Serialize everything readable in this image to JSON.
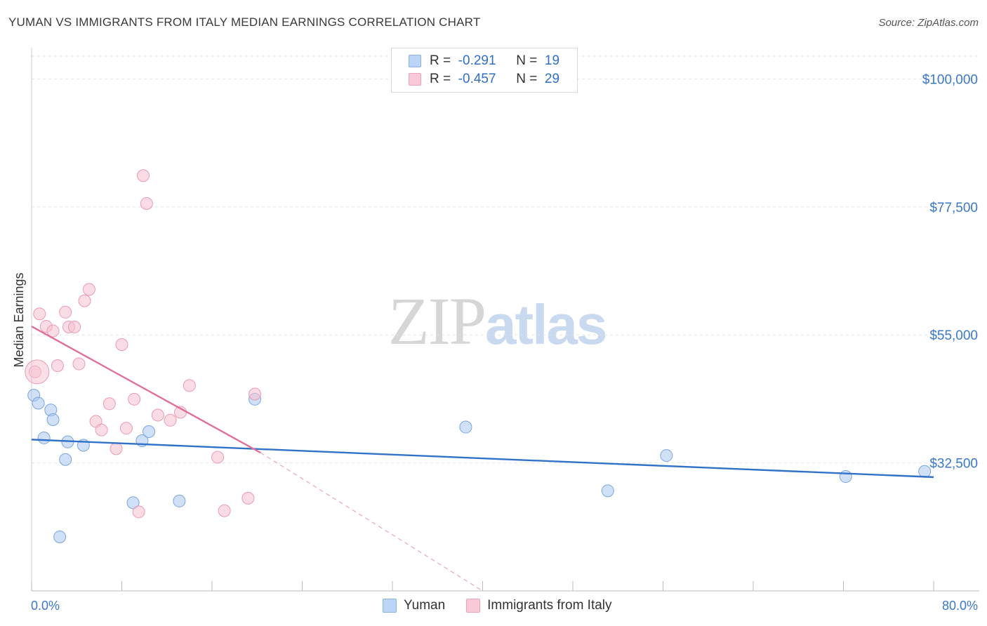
{
  "title": "YUMAN VS IMMIGRANTS FROM ITALY MEDIAN EARNINGS CORRELATION CHART",
  "source": "Source: ZipAtlas.com",
  "watermark": {
    "zip": "ZIP",
    "atlas": "atlas"
  },
  "legend": {
    "rows": [
      {
        "r_label": "R =",
        "r_value": "-0.291",
        "n_label": "N =",
        "n_value": "19"
      },
      {
        "r_label": "R =",
        "r_value": "-0.457",
        "n_label": "N =",
        "n_value": "29"
      }
    ]
  },
  "chart_data": {
    "type": "scatter",
    "title": "YUMAN VS IMMIGRANTS FROM ITALY MEDIAN EARNINGS CORRELATION CHART",
    "ylabel": "Median Earnings",
    "xlim": [
      0,
      80
    ],
    "ylim": [
      10000,
      104000
    ],
    "x_tick_labels": [
      "0.0%",
      "80.0%"
    ],
    "y_ticks": [
      {
        "value": 100000,
        "label": "$100,000"
      },
      {
        "value": 77500,
        "label": "$77,500"
      },
      {
        "value": 55000,
        "label": "$55,000"
      },
      {
        "value": 32500,
        "label": "$32,500"
      }
    ],
    "series": [
      {
        "name": "Yuman",
        "color": "#a9c6ef",
        "stroke": "#7aa6e0",
        "line_color": "#2f72c8",
        "trend": {
          "x0": 0,
          "y0": 36600,
          "x1": 80,
          "y1": 30000,
          "dashed_to": null
        },
        "points": [
          {
            "x": 0.2,
            "y": 44400
          },
          {
            "x": 0.6,
            "y": 43000
          },
          {
            "x": 1.1,
            "y": 36900
          },
          {
            "x": 1.7,
            "y": 41800
          },
          {
            "x": 1.9,
            "y": 40100
          },
          {
            "x": 2.5,
            "y": 19500
          },
          {
            "x": 3.0,
            "y": 33100
          },
          {
            "x": 3.2,
            "y": 36200
          },
          {
            "x": 4.6,
            "y": 35600
          },
          {
            "x": 9.0,
            "y": 25500
          },
          {
            "x": 9.8,
            "y": 36400
          },
          {
            "x": 10.4,
            "y": 38000
          },
          {
            "x": 13.1,
            "y": 25800
          },
          {
            "x": 19.8,
            "y": 43700
          },
          {
            "x": 38.5,
            "y": 38800
          },
          {
            "x": 51.1,
            "y": 27600
          },
          {
            "x": 56.3,
            "y": 33800
          },
          {
            "x": 72.2,
            "y": 30100
          },
          {
            "x": 79.2,
            "y": 31000
          }
        ]
      },
      {
        "name": "Immigrants from Italy",
        "color": "#f6bfd0",
        "stroke": "#eb9ab4",
        "line_color": "#e0709b",
        "trend": {
          "x0": 0,
          "y0": 56500,
          "x1": 20.3,
          "y1": 34300,
          "dashed_to": {
            "x": 40,
            "y": 10000
          }
        },
        "points": [
          {
            "x": 0.3,
            "y": 48500
          },
          {
            "x": 0.7,
            "y": 58700
          },
          {
            "x": 1.3,
            "y": 56500
          },
          {
            "x": 1.9,
            "y": 55700
          },
          {
            "x": 2.3,
            "y": 49600
          },
          {
            "x": 3.0,
            "y": 59000
          },
          {
            "x": 3.3,
            "y": 56400
          },
          {
            "x": 3.8,
            "y": 56400
          },
          {
            "x": 4.2,
            "y": 49900
          },
          {
            "x": 4.7,
            "y": 61000
          },
          {
            "x": 5.1,
            "y": 63000
          },
          {
            "x": 5.7,
            "y": 39800
          },
          {
            "x": 6.2,
            "y": 38300
          },
          {
            "x": 6.9,
            "y": 42900
          },
          {
            "x": 7.5,
            "y": 35000
          },
          {
            "x": 8.0,
            "y": 53300
          },
          {
            "x": 8.4,
            "y": 38600
          },
          {
            "x": 9.1,
            "y": 43700
          },
          {
            "x": 9.5,
            "y": 23900
          },
          {
            "x": 9.9,
            "y": 83000
          },
          {
            "x": 10.2,
            "y": 78100
          },
          {
            "x": 11.2,
            "y": 40900
          },
          {
            "x": 12.3,
            "y": 40000
          },
          {
            "x": 13.2,
            "y": 41400
          },
          {
            "x": 14.0,
            "y": 46100
          },
          {
            "x": 16.5,
            "y": 33500
          },
          {
            "x": 17.1,
            "y": 24100
          },
          {
            "x": 19.2,
            "y": 26300
          },
          {
            "x": 19.8,
            "y": 44600
          }
        ]
      }
    ]
  }
}
